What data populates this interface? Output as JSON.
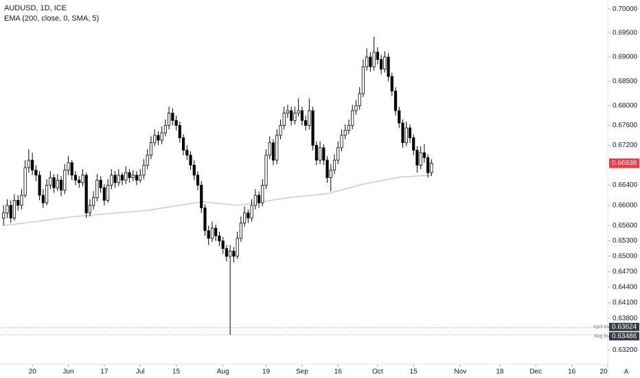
{
  "chart_data": {
    "type": "candlestick",
    "title": "AUDUSD, 1D, ICE",
    "indicator": {
      "name": "EMA (200, close, 0, SMA, 5)",
      "color": "#c9c6ee",
      "x": [
        0,
        20,
        40,
        55,
        65,
        80,
        90,
        100,
        110,
        119
      ],
      "values": [
        0.656,
        0.6578,
        0.659,
        0.6607,
        0.66,
        0.6616,
        0.6623,
        0.6642,
        0.6656,
        0.666
      ]
    },
    "up_color": "#ffffff",
    "down_color": "#000000",
    "last_price_color": "#f23645",
    "log_scale": true,
    "ylim": [
      0.6293,
      0.7019
    ],
    "yticks": [
      {
        "value": 0.7,
        "label": "0.70000"
      },
      {
        "value": 0.695,
        "label": "0.69500"
      },
      {
        "value": 0.69,
        "label": "0.69000"
      },
      {
        "value": 0.685,
        "label": "0.68500"
      },
      {
        "value": 0.68,
        "label": "0.68000"
      },
      {
        "value": 0.676,
        "label": "0.67600"
      },
      {
        "value": 0.672,
        "label": "0.67200"
      },
      {
        "value": 0.664,
        "label": "0.66400"
      },
      {
        "value": 0.66,
        "label": "0.66000"
      },
      {
        "value": 0.656,
        "label": "0.65600"
      },
      {
        "value": 0.653,
        "label": "0.65300"
      },
      {
        "value": 0.65,
        "label": "0.65000"
      },
      {
        "value": 0.647,
        "label": "0.64700"
      },
      {
        "value": 0.644,
        "label": "0.64400"
      },
      {
        "value": 0.641,
        "label": "0.64100"
      },
      {
        "value": 0.638,
        "label": "0.63800"
      },
      {
        "value": 0.632,
        "label": "0.63200"
      }
    ],
    "xlim": [
      -1,
      168
    ],
    "xticks": [
      {
        "value": 8,
        "label": "20"
      },
      {
        "value": 18,
        "label": "Jun"
      },
      {
        "value": 28,
        "label": "17"
      },
      {
        "value": 38,
        "label": "Jul"
      },
      {
        "value": 48,
        "label": "15"
      },
      {
        "value": 61,
        "label": "Aug"
      },
      {
        "value": 73,
        "label": "19"
      },
      {
        "value": 83,
        "label": "Sep"
      },
      {
        "value": 93,
        "label": "16"
      },
      {
        "value": 104,
        "label": "Oct"
      },
      {
        "value": 114,
        "label": "15"
      },
      {
        "value": 127,
        "label": "Nov"
      },
      {
        "value": 138,
        "label": "18"
      },
      {
        "value": 148,
        "label": "Dec"
      },
      {
        "value": 158,
        "label": "16"
      },
      {
        "value": 168,
        "label": "20"
      }
    ],
    "hlines": [
      {
        "value": 0.63624,
        "label": "April low"
      },
      {
        "value": 0.63486,
        "label": "Aug low"
      }
    ],
    "candles": [
      [
        0.6575,
        0.66,
        0.656,
        0.6585
      ],
      [
        0.6585,
        0.6612,
        0.6575,
        0.66
      ],
      [
        0.66,
        0.661,
        0.6565,
        0.6575
      ],
      [
        0.6575,
        0.6622,
        0.657,
        0.661
      ],
      [
        0.661,
        0.662,
        0.659,
        0.66
      ],
      [
        0.66,
        0.6632,
        0.6592,
        0.662
      ],
      [
        0.662,
        0.669,
        0.6615,
        0.6675
      ],
      [
        0.6675,
        0.6712,
        0.6665,
        0.669
      ],
      [
        0.669,
        0.6705,
        0.666,
        0.667
      ],
      [
        0.667,
        0.668,
        0.6648,
        0.666
      ],
      [
        0.666,
        0.6668,
        0.661,
        0.662
      ],
      [
        0.662,
        0.6632,
        0.6595,
        0.6605
      ],
      [
        0.6605,
        0.6652,
        0.66,
        0.664
      ],
      [
        0.664,
        0.6668,
        0.6632,
        0.6655
      ],
      [
        0.6655,
        0.6662,
        0.6625,
        0.6635
      ],
      [
        0.6635,
        0.6662,
        0.6628,
        0.665
      ],
      [
        0.665,
        0.6658,
        0.6618,
        0.663
      ],
      [
        0.663,
        0.6682,
        0.6622,
        0.667
      ],
      [
        0.667,
        0.6698,
        0.666,
        0.6685
      ],
      [
        0.6685,
        0.669,
        0.665,
        0.666
      ],
      [
        0.666,
        0.6668,
        0.664,
        0.665
      ],
      [
        0.665,
        0.6658,
        0.6635,
        0.6645
      ],
      [
        0.6645,
        0.6672,
        0.6638,
        0.666
      ],
      [
        0.666,
        0.6665,
        0.6575,
        0.6585
      ],
      [
        0.6585,
        0.6612,
        0.6578,
        0.66
      ],
      [
        0.66,
        0.6628,
        0.6592,
        0.6615
      ],
      [
        0.6615,
        0.6662,
        0.6608,
        0.665
      ],
      [
        0.665,
        0.6658,
        0.6625,
        0.6635
      ],
      [
        0.6635,
        0.6642,
        0.66,
        0.661
      ],
      [
        0.661,
        0.6652,
        0.6605,
        0.664
      ],
      [
        0.664,
        0.6672,
        0.6632,
        0.666
      ],
      [
        0.666,
        0.6668,
        0.6635,
        0.6645
      ],
      [
        0.6645,
        0.6672,
        0.6638,
        0.666
      ],
      [
        0.666,
        0.6665,
        0.664,
        0.665
      ],
      [
        0.665,
        0.6678,
        0.6642,
        0.6665
      ],
      [
        0.6665,
        0.6672,
        0.6645,
        0.6655
      ],
      [
        0.6655,
        0.667,
        0.6648,
        0.666
      ],
      [
        0.666,
        0.6668,
        0.664,
        0.665
      ],
      [
        0.665,
        0.6672,
        0.6645,
        0.666
      ],
      [
        0.666,
        0.6692,
        0.6652,
        0.668
      ],
      [
        0.668,
        0.6712,
        0.6672,
        0.67
      ],
      [
        0.67,
        0.6738,
        0.6692,
        0.6725
      ],
      [
        0.6725,
        0.6752,
        0.6718,
        0.674
      ],
      [
        0.674,
        0.6748,
        0.672,
        0.673
      ],
      [
        0.673,
        0.6758,
        0.6722,
        0.6745
      ],
      [
        0.6745,
        0.6772,
        0.6738,
        0.676
      ],
      [
        0.676,
        0.6798,
        0.6752,
        0.6785
      ],
      [
        0.6785,
        0.6795,
        0.676,
        0.677
      ],
      [
        0.677,
        0.678,
        0.675,
        0.676
      ],
      [
        0.676,
        0.6768,
        0.6725,
        0.6735
      ],
      [
        0.6735,
        0.6742,
        0.67,
        0.671
      ],
      [
        0.671,
        0.672,
        0.669,
        0.67
      ],
      [
        0.67,
        0.6708,
        0.667,
        0.668
      ],
      [
        0.668,
        0.669,
        0.665,
        0.666
      ],
      [
        0.666,
        0.6668,
        0.663,
        0.664
      ],
      [
        0.664,
        0.6648,
        0.6585,
        0.6595
      ],
      [
        0.6595,
        0.6602,
        0.654,
        0.655
      ],
      [
        0.655,
        0.656,
        0.6522,
        0.6535
      ],
      [
        0.6535,
        0.6568,
        0.6528,
        0.6555
      ],
      [
        0.6555,
        0.6562,
        0.653,
        0.654
      ],
      [
        0.654,
        0.6548,
        0.652,
        0.653
      ],
      [
        0.653,
        0.6538,
        0.6505,
        0.6515
      ],
      [
        0.6515,
        0.6522,
        0.649,
        0.65
      ],
      [
        0.65,
        0.6522,
        0.63486,
        0.651
      ],
      [
        0.651,
        0.6518,
        0.6488,
        0.65
      ],
      [
        0.65,
        0.6548,
        0.6495,
        0.6535
      ],
      [
        0.6535,
        0.6578,
        0.6528,
        0.6565
      ],
      [
        0.6565,
        0.6598,
        0.6558,
        0.6585
      ],
      [
        0.6585,
        0.6592,
        0.6565,
        0.6575
      ],
      [
        0.6575,
        0.6612,
        0.6568,
        0.66
      ],
      [
        0.66,
        0.6632,
        0.6592,
        0.662
      ],
      [
        0.662,
        0.6628,
        0.6595,
        0.6605
      ],
      [
        0.6605,
        0.6652,
        0.6598,
        0.664
      ],
      [
        0.664,
        0.6712,
        0.6632,
        0.67
      ],
      [
        0.67,
        0.6738,
        0.6692,
        0.6725
      ],
      [
        0.6725,
        0.6732,
        0.668,
        0.669
      ],
      [
        0.669,
        0.6752,
        0.6682,
        0.674
      ],
      [
        0.674,
        0.6772,
        0.6732,
        0.676
      ],
      [
        0.676,
        0.6798,
        0.6752,
        0.6785
      ],
      [
        0.6785,
        0.6802,
        0.6775,
        0.679
      ],
      [
        0.679,
        0.6798,
        0.676,
        0.677
      ],
      [
        0.677,
        0.6798,
        0.6762,
        0.6785
      ],
      [
        0.6785,
        0.6815,
        0.6778,
        0.679
      ],
      [
        0.679,
        0.6798,
        0.676,
        0.677
      ],
      [
        0.677,
        0.678,
        0.675,
        0.676
      ],
      [
        0.676,
        0.6815,
        0.6752,
        0.679
      ],
      [
        0.679,
        0.6798,
        0.671,
        0.672
      ],
      [
        0.672,
        0.6728,
        0.668,
        0.669
      ],
      [
        0.669,
        0.6728,
        0.6682,
        0.6715
      ],
      [
        0.6715,
        0.6722,
        0.668,
        0.669
      ],
      [
        0.669,
        0.6698,
        0.6645,
        0.6655
      ],
      [
        0.6655,
        0.6682,
        0.6628,
        0.667
      ],
      [
        0.667,
        0.6702,
        0.6662,
        0.669
      ],
      [
        0.669,
        0.6728,
        0.6682,
        0.6715
      ],
      [
        0.6715,
        0.6752,
        0.6708,
        0.674
      ],
      [
        0.674,
        0.6762,
        0.6732,
        0.675
      ],
      [
        0.675,
        0.6772,
        0.6742,
        0.676
      ],
      [
        0.676,
        0.6802,
        0.6752,
        0.679
      ],
      [
        0.679,
        0.6812,
        0.6782,
        0.68
      ],
      [
        0.68,
        0.6838,
        0.6792,
        0.6825
      ],
      [
        0.6825,
        0.6895,
        0.6818,
        0.688
      ],
      [
        0.688,
        0.6918,
        0.6872,
        0.69
      ],
      [
        0.69,
        0.691,
        0.687,
        0.688
      ],
      [
        0.688,
        0.6942,
        0.6872,
        0.691
      ],
      [
        0.691,
        0.692,
        0.6885,
        0.6895
      ],
      [
        0.6895,
        0.6905,
        0.6865,
        0.6875
      ],
      [
        0.6875,
        0.6912,
        0.6868,
        0.69
      ],
      [
        0.69,
        0.6908,
        0.685,
        0.686
      ],
      [
        0.686,
        0.6868,
        0.682,
        0.683
      ],
      [
        0.683,
        0.6838,
        0.678,
        0.679
      ],
      [
        0.679,
        0.6798,
        0.6755,
        0.6765
      ],
      [
        0.6765,
        0.6772,
        0.6715,
        0.6725
      ],
      [
        0.6725,
        0.6768,
        0.6718,
        0.6755
      ],
      [
        0.6755,
        0.6762,
        0.6725,
        0.6735
      ],
      [
        0.6735,
        0.6742,
        0.67,
        0.671
      ],
      [
        0.671,
        0.6718,
        0.6665,
        0.668
      ],
      [
        0.668,
        0.6718,
        0.6672,
        0.6705
      ],
      [
        0.6705,
        0.6722,
        0.6685,
        0.6695
      ],
      [
        0.6695,
        0.6702,
        0.6655,
        0.6665
      ],
      [
        0.6665,
        0.6692,
        0.6658,
        0.66838
      ]
    ]
  }
}
